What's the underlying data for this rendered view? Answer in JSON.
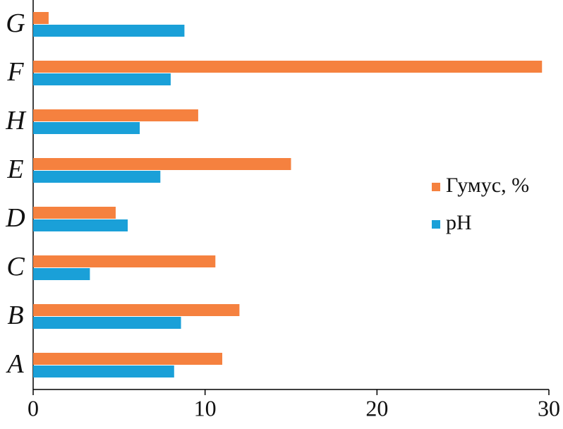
{
  "chart_data": {
    "type": "hbar",
    "categories": [
      "A",
      "B",
      "C",
      "D",
      "E",
      "H",
      "F",
      "G"
    ],
    "series": [
      {
        "name": "Гумус, %",
        "color": "#f5813f",
        "values": [
          11.0,
          12.0,
          10.6,
          4.8,
          15.0,
          9.6,
          29.6,
          0.9
        ]
      },
      {
        "name": "pH",
        "color": "#1aa0d8",
        "values": [
          8.2,
          8.6,
          3.3,
          5.5,
          7.4,
          6.2,
          8.0,
          8.8
        ]
      }
    ],
    "xlim": [
      0,
      30
    ],
    "xticks": [
      0,
      10,
      20,
      30
    ],
    "legend": "right"
  }
}
